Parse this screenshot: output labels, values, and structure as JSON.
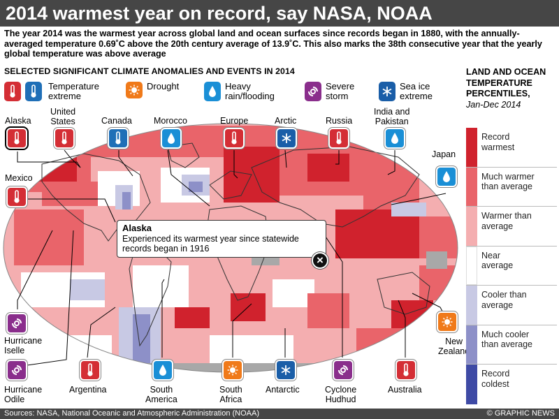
{
  "title": "2014 warmest year on record, say NASA, NOAA",
  "intro": "The year 2014 was the warmest year across global land and ocean surfaces since records began in 1880, with the annually-averaged temperature 0.69˚C above the 20th century average of 13.9˚C. This also marks the 38th consecutive year that the yearly global temperature was above average",
  "section_heading": "SELECTED SIGNIFICANT CLIMATE ANOMALIES AND EVENTS IN 2014",
  "legend": [
    {
      "icon": "thermometer-icon",
      "label_line1": "Temperature",
      "label_line2": "extreme"
    },
    {
      "icon": "sun-icon",
      "label_line1": "Drought",
      "label_line2": ""
    },
    {
      "icon": "raindrop-icon",
      "label_line1": "Heavy",
      "label_line2": "rain/flooding"
    },
    {
      "icon": "storm-icon",
      "label_line1": "Severe",
      "label_line2": "storm"
    },
    {
      "icon": "snowflake-icon",
      "label_line1": "Sea ice",
      "label_line2": "extreme"
    }
  ],
  "events": {
    "alaska": "Alaska",
    "united_states": "United\nStates",
    "canada": "Canada",
    "morocco": "Morocco",
    "europe": "Europe",
    "arctic": "Arctic",
    "russia": "Russia",
    "india_pakistan": "India and\nPakistan",
    "japan": "Japan",
    "mexico": "Mexico",
    "hurricane_iselle": "Hurricane\nIselle",
    "new_zealand": "New\nZealand",
    "hurricane_odile": "Hurricane\nOdile",
    "argentina": "Argentina",
    "south_america": "South\nAmerica",
    "south_africa": "South\nAfrica",
    "antarctic": "Antarctic",
    "cyclone_hudhud": "Cyclone\nHudhud",
    "australia": "Australia"
  },
  "popup": {
    "title": "Alaska",
    "body": "Experienced its warmest year since statewide records began in 1916",
    "close_glyph": "×"
  },
  "scale": {
    "heading": "LAND AND OCEAN TEMPERATURE PERCENTILES,",
    "period": "Jan-Dec 2014",
    "items": [
      {
        "label": "Record\nwarmest",
        "color": "#d0222d"
      },
      {
        "label": "Much warmer\nthan average",
        "color": "#e9646a"
      },
      {
        "label": "Warmer than\naverage",
        "color": "#f4aeb0"
      },
      {
        "label": "Near\naverage",
        "color": "#ffffff"
      },
      {
        "label": "Cooler than\naverage",
        "color": "#c8c9e4"
      },
      {
        "label": "Much cooler\nthan average",
        "color": "#8d90c8"
      },
      {
        "label": "Record\ncoldest",
        "color": "#3e4aa5"
      }
    ]
  },
  "footer": {
    "sources": "Sources: NASA, National Oceanic and Atmospheric Administration (NOAA)",
    "credit": "© GRAPHIC NEWS"
  },
  "colors": {
    "record_warm": "#d0222d",
    "much_warmer": "#e9646a",
    "warmer": "#f4aeb0",
    "near": "#ffffff",
    "cooler": "#c8c9e4",
    "much_cooler": "#8d90c8",
    "record_cold": "#3e4aa5",
    "no_data": "#a8a8a8",
    "header_bar": "#464646"
  }
}
